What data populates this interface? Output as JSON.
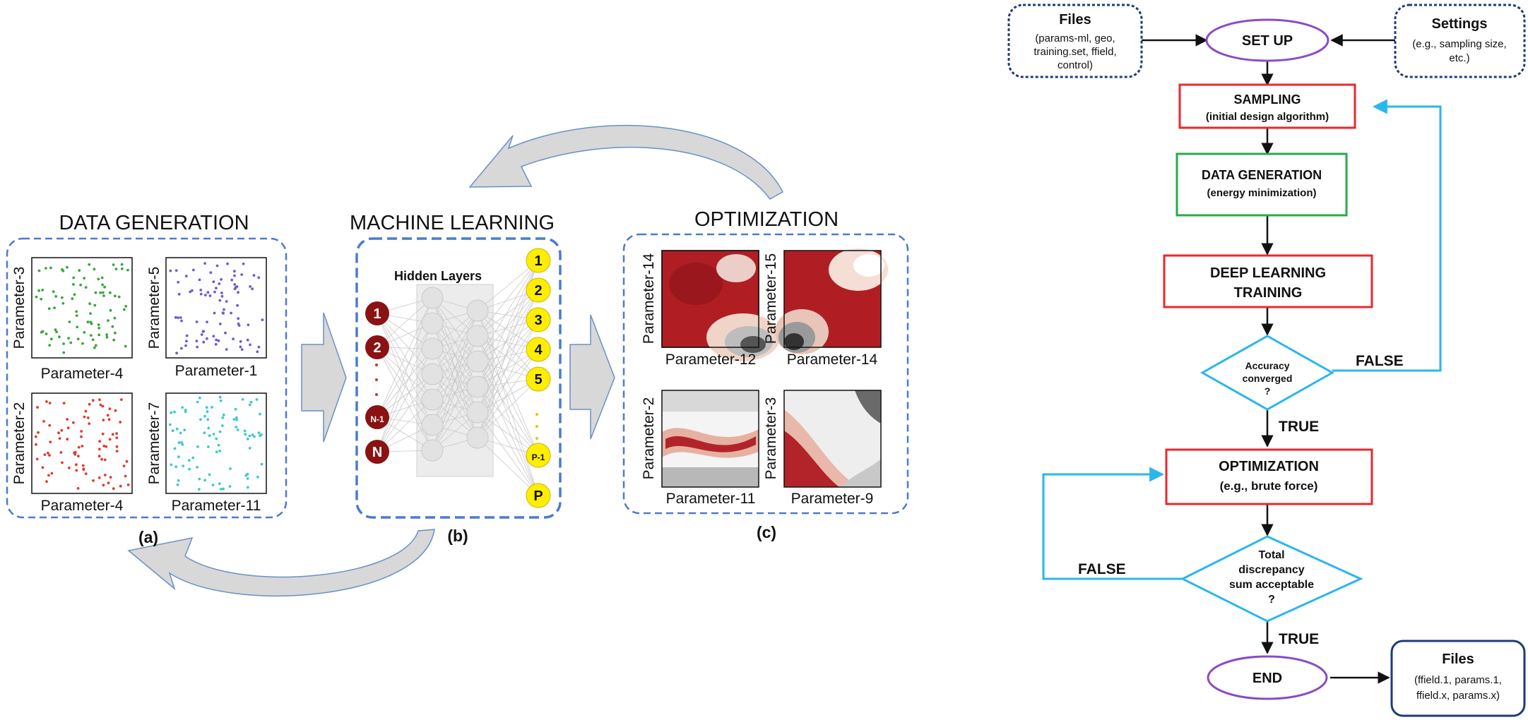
{
  "pipeline": {
    "data_generation": {
      "title": "DATA GENERATION",
      "panel_label": "(a)",
      "plots": [
        {
          "ylabel": "Parameter-3",
          "xlabel": "Parameter-4",
          "color": "#3aa63a"
        },
        {
          "ylabel": "Parameter-5",
          "xlabel": "Parameter-1",
          "color": "#6a5cd6"
        },
        {
          "ylabel": "Parameter-2",
          "xlabel": "Parameter-4",
          "color": "#e23b2e"
        },
        {
          "ylabel": "Parameter-7",
          "xlabel": "Parameter-11",
          "color": "#3fc9c9"
        }
      ]
    },
    "machine_learning": {
      "title": "MACHINE LEARNING",
      "panel_label": "(b)",
      "hidden_label": "Hidden Layers",
      "input_nodes": [
        "1",
        "2",
        "N-1",
        "N"
      ],
      "output_nodes": [
        "1",
        "2",
        "3",
        "4",
        "5",
        "P-1",
        "P"
      ],
      "input_color": "#8b1212",
      "output_color": "#ffee00"
    },
    "optimization": {
      "title": "OPTIMIZATION",
      "panel_label": "(c)",
      "plots": [
        {
          "ylabel": "Parameter-14",
          "xlabel": "Parameter-12"
        },
        {
          "ylabel": "Parameter-15",
          "xlabel": "Parameter-14"
        },
        {
          "ylabel": "Parameter-2",
          "xlabel": "Parameter-11"
        },
        {
          "ylabel": "Parameter-3",
          "xlabel": "Parameter-9"
        }
      ]
    }
  },
  "flowchart": {
    "files_in": {
      "title": "Files",
      "lines": [
        "(params-ml, geo,",
        "training.set, ffield,",
        "control)"
      ]
    },
    "settings": {
      "title": "Settings",
      "lines": [
        "(e.g., sampling size,",
        "etc.)"
      ]
    },
    "setup": "SET UP",
    "sampling": {
      "title": "SAMPLING",
      "sub": "(initial design algorithm)"
    },
    "data_gen": {
      "title": "DATA GENERATION",
      "sub": "(energy minimization)"
    },
    "dl_training": {
      "line1": "DEEP LEARNING",
      "line2": "TRAINING"
    },
    "accuracy": {
      "lines": [
        "Accuracy",
        "converged",
        "?"
      ]
    },
    "false1": "FALSE",
    "true1": "TRUE",
    "optimization": {
      "title": "OPTIMIZATION",
      "sub": "(e.g., brute force)"
    },
    "discrepancy": {
      "lines": [
        "Total",
        "discrepancy",
        "sum acceptable",
        "?"
      ]
    },
    "false2": "FALSE",
    "true2": "TRUE",
    "end": "END",
    "files_out": {
      "title": "Files",
      "lines": [
        "(ffield.1, params.1,",
        "ffield.x, params.x)"
      ]
    }
  },
  "colors": {
    "dashed_blue": "#4a7bd0",
    "dark_blue": "#1f3a7a",
    "purple": "#8a4bc7",
    "red": "#e8292e",
    "green": "#2aa94a",
    "cyan": "#2ab6ee",
    "arrow_gray": "#d8d8d8"
  }
}
